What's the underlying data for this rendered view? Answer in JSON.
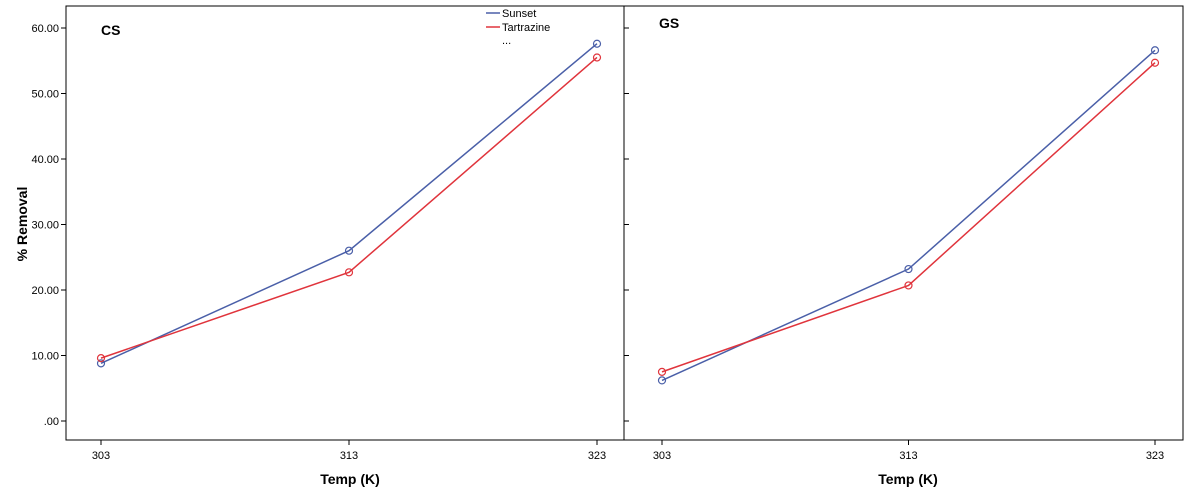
{
  "chart_data": {
    "type": "line",
    "ylabel": "% Removal",
    "xlabel": "Temp (K)",
    "ylim": [
      0,
      60
    ],
    "yticks": [
      0,
      10,
      20,
      30,
      40,
      50,
      60
    ],
    "ytick_labels": [
      ".00",
      "10.00",
      "20.00",
      "30.00",
      "40.00",
      "50.00",
      "60.00"
    ],
    "categories": [
      "303",
      "313",
      "323"
    ],
    "legend": {
      "placement": "top-center",
      "entries": [
        "Sunset",
        "Tartrazine"
      ],
      "more_label": "..."
    },
    "colors": {
      "Sunset": "#4a5fa8",
      "Tartrazine": "#e0343c"
    },
    "grid": false,
    "panels": [
      {
        "label": "CS",
        "series": [
          {
            "name": "Sunset",
            "values": [
              8.8,
              26.0,
              57.6
            ]
          },
          {
            "name": "Tartrazine",
            "values": [
              9.6,
              22.7,
              55.5
            ]
          }
        ]
      },
      {
        "label": "GS",
        "series": [
          {
            "name": "Sunset",
            "values": [
              6.2,
              23.2,
              56.6
            ]
          },
          {
            "name": "Tartrazine",
            "values": [
              7.5,
              20.7,
              54.7
            ]
          }
        ]
      }
    ]
  }
}
